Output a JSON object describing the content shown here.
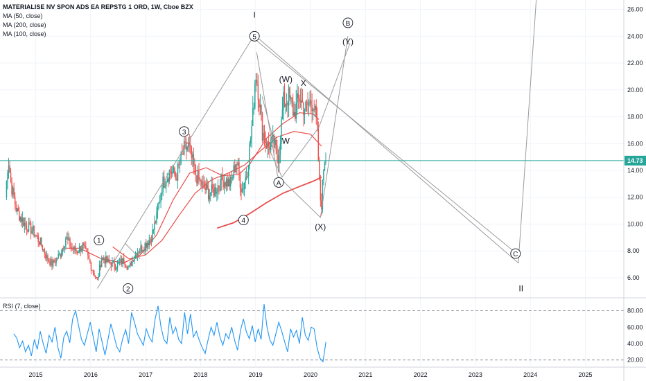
{
  "header": {
    "symbol_line": "MATERIALISE NV SPON ADS EA REPSTG 1 ORD, 1W, Cboe BZX",
    "studies": [
      "MA (50, close)",
      "MA (200, close)",
      "MA (100, close)"
    ]
  },
  "rsi_panel": {
    "label": "RSI (7, close)"
  },
  "current_price_label": "14.73",
  "colors": {
    "candle_up": "#26a69a",
    "candle_down": "#ef5350",
    "ma": "#e53935",
    "rsi": "#2196f3",
    "wave_lines": "#9a9a9a",
    "price_line": "#26a69a",
    "price_tag_bg": "#26a69a"
  },
  "chart_data": [
    {
      "type": "candlestick",
      "title": "MATERIALISE NV SPON ADS EA REPSTG 1 ORD, 1W, Cboe BZX",
      "x_ticks": [
        "2015",
        "2016",
        "2017",
        "2018",
        "2019",
        "2020",
        "2021",
        "2022",
        "2023",
        "2024",
        "2025"
      ],
      "y_ticks": [
        "6.00",
        "8.00",
        "10.00",
        "12.00",
        "14.00",
        "16.00",
        "18.00",
        "20.00",
        "22.00",
        "24.00",
        "26.00"
      ],
      "ylim": [
        4.5,
        26.7
      ],
      "last_price": 14.73,
      "price_path": [
        [
          2014.45,
          12
        ],
        [
          2014.5,
          15
        ],
        [
          2014.55,
          13
        ],
        [
          2014.65,
          11
        ],
        [
          2014.8,
          10
        ],
        [
          2014.95,
          9.5
        ],
        [
          2015.1,
          8.5
        ],
        [
          2015.2,
          7.5
        ],
        [
          2015.3,
          7
        ],
        [
          2015.45,
          7.8
        ],
        [
          2015.55,
          9
        ],
        [
          2015.65,
          8.2
        ],
        [
          2015.75,
          8
        ],
        [
          2015.85,
          8.4
        ],
        [
          2015.95,
          7.5
        ],
        [
          2016.05,
          6.4
        ],
        [
          2016.12,
          5.8
        ],
        [
          2016.2,
          7.5
        ],
        [
          2016.3,
          7.2
        ],
        [
          2016.45,
          6.9
        ],
        [
          2016.6,
          7.3
        ],
        [
          2016.7,
          6.7
        ],
        [
          2016.8,
          7.8
        ],
        [
          2016.95,
          8.3
        ],
        [
          2017.1,
          9
        ],
        [
          2017.2,
          10.5
        ],
        [
          2017.3,
          13
        ],
        [
          2017.45,
          14
        ],
        [
          2017.55,
          13.5
        ],
        [
          2017.7,
          15.5
        ],
        [
          2017.78,
          15.8
        ],
        [
          2017.9,
          13.8
        ],
        [
          2018.0,
          13
        ],
        [
          2018.15,
          12.3
        ],
        [
          2018.25,
          12.5
        ],
        [
          2018.4,
          13.3
        ],
        [
          2018.55,
          13
        ],
        [
          2018.65,
          14.8
        ],
        [
          2018.75,
          12.5
        ],
        [
          2018.85,
          14
        ],
        [
          2018.95,
          18
        ],
        [
          2019.0,
          21.5
        ],
        [
          2019.05,
          20
        ],
        [
          2019.12,
          17
        ],
        [
          2019.22,
          15.8
        ],
        [
          2019.32,
          16
        ],
        [
          2019.42,
          15
        ],
        [
          2019.5,
          19
        ],
        [
          2019.6,
          19.5
        ],
        [
          2019.7,
          18.2
        ],
        [
          2019.8,
          19.5
        ],
        [
          2019.9,
          18.5
        ],
        [
          2019.98,
          19
        ],
        [
          2020.05,
          19.2
        ],
        [
          2020.12,
          17
        ],
        [
          2020.17,
          12
        ],
        [
          2020.2,
          11.5
        ],
        [
          2020.25,
          15
        ],
        [
          2020.28,
          14.73
        ]
      ],
      "moving_averages": [
        {
          "name": "MA (50, close)",
          "points": [
            [
              2015.55,
              8.2
            ],
            [
              2015.8,
              8.2
            ],
            [
              2016.2,
              7.4
            ],
            [
              2016.6,
              7.1
            ],
            [
              2016.9,
              7.7
            ],
            [
              2017.2,
              9.2
            ],
            [
              2017.5,
              11.8
            ],
            [
              2017.8,
              13.8
            ],
            [
              2018.1,
              14.2
            ],
            [
              2018.4,
              13.6
            ],
            [
              2018.7,
              13.7
            ],
            [
              2018.9,
              14.5
            ],
            [
              2019.2,
              16.4
            ],
            [
              2019.5,
              17.5
            ],
            [
              2019.8,
              18.3
            ],
            [
              2020.05,
              18.2
            ],
            [
              2020.15,
              17.8
            ]
          ]
        },
        {
          "name": "MA (100, close)",
          "points": [
            [
              2016.4,
              8.3
            ],
            [
              2016.7,
              7.4
            ],
            [
              2017.0,
              7.7
            ],
            [
              2017.3,
              8.8
            ],
            [
              2017.6,
              10.6
            ],
            [
              2017.9,
              12.3
            ],
            [
              2018.2,
              13.3
            ],
            [
              2018.5,
              13.8
            ],
            [
              2018.8,
              14.4
            ],
            [
              2019.1,
              15.5
            ],
            [
              2019.4,
              16.5
            ],
            [
              2019.7,
              16.9
            ],
            [
              2020.0,
              16.7
            ],
            [
              2020.2,
              15.8
            ]
          ]
        },
        {
          "name": "MA (200, close)",
          "points": [
            [
              2018.3,
              9.7
            ],
            [
              2018.6,
              10.1
            ],
            [
              2018.9,
              10.8
            ],
            [
              2019.2,
              11.6
            ],
            [
              2019.5,
              12.3
            ],
            [
              2019.8,
              12.8
            ],
            [
              2020.05,
              13.2
            ],
            [
              2020.2,
              13.5
            ]
          ]
        }
      ],
      "wave_labels": [
        {
          "text": "1",
          "x": 2016.15,
          "y": 8.8,
          "circled": true
        },
        {
          "text": "2",
          "x": 2016.68,
          "y": 5.2,
          "circled": true
        },
        {
          "text": "3",
          "x": 2017.7,
          "y": 16.9,
          "circled": true
        },
        {
          "text": "4",
          "x": 2018.78,
          "y": 10.3,
          "circled": true
        },
        {
          "text": "5",
          "x": 2018.98,
          "y": 24.0,
          "circled": true
        },
        {
          "text": "I",
          "x": 2018.98,
          "y": 25.6,
          "circled": false
        },
        {
          "text": "(W)",
          "x": 2019.55,
          "y": 20.8,
          "circled": false
        },
        {
          "text": "X",
          "x": 2019.87,
          "y": 20.5,
          "circled": false
        },
        {
          "text": "W",
          "x": 2019.55,
          "y": 16.2,
          "circled": false
        },
        {
          "text": "A",
          "x": 2019.42,
          "y": 13.1,
          "circled": true
        },
        {
          "text": "(X)",
          "x": 2020.18,
          "y": 9.8,
          "circled": false
        },
        {
          "text": "B",
          "x": 2020.68,
          "y": 25.0,
          "circled": true
        },
        {
          "text": "(Y)",
          "x": 2020.68,
          "y": 23.6,
          "circled": false
        },
        {
          "text": "C",
          "x": 2023.73,
          "y": 7.8,
          "circled": true
        },
        {
          "text": "II",
          "x": 2023.83,
          "y": 5.2,
          "circled": false
        }
      ],
      "wave_paths": [
        [
          [
            2016.12,
            5.2
          ],
          [
            2018.98,
            24.1
          ],
          [
            2023.78,
            7.1
          ],
          [
            2024.12,
            27.5
          ]
        ],
        [
          [
            2016.62,
            8.6
          ],
          [
            2016.9,
            7.4
          ]
        ],
        [
          [
            2019.02,
            22.8
          ],
          [
            2019.4,
            13.6
          ],
          [
            2020.18,
            10.5
          ],
          [
            2020.68,
            24.0
          ]
        ],
        [
          [
            2019.12,
            19.5
          ],
          [
            2019.4,
            15.1
          ]
        ],
        [
          [
            2019.22,
            15.8
          ],
          [
            2019.48,
            13.5
          ],
          [
            2020.15,
            17.2
          ],
          [
            2020.72,
            23.5
          ]
        ],
        [
          [
            2018.98,
            23.8
          ],
          [
            2023.75,
            7.8
          ]
        ]
      ]
    },
    {
      "type": "line",
      "title": "RSI (7, close)",
      "y_ticks": [
        "20.00",
        "40.00",
        "60.00",
        "80.00"
      ],
      "ylim": [
        13,
        94
      ],
      "reference_levels": [
        20,
        80
      ],
      "series": [
        {
          "name": "RSI (7, close)",
          "x_start": 2014.6,
          "x_end": 2020.28,
          "values": [
            52,
            47,
            35,
            43,
            30,
            38,
            25,
            45,
            33,
            55,
            40,
            28,
            50,
            42,
            60,
            35,
            22,
            48,
            55,
            41,
            70,
            80,
            62,
            45,
            38,
            52,
            66,
            48,
            30,
            58,
            42,
            26,
            45,
            64,
            50,
            36,
            30,
            46,
            57,
            40,
            78,
            66,
            52,
            45,
            38,
            58,
            48,
            42,
            70,
            86,
            60,
            45,
            40,
            72,
            52,
            60,
            45,
            40,
            78,
            52,
            76,
            48,
            55,
            44,
            35,
            28,
            45,
            60,
            50,
            66,
            48,
            38,
            52,
            46,
            60,
            44,
            32,
            56,
            70,
            54,
            46,
            62,
            42,
            58,
            45,
            88,
            60,
            44,
            38,
            52,
            66,
            55,
            42,
            30,
            58,
            48,
            56,
            40,
            72,
            50,
            44,
            60,
            58,
            35,
            22,
            18,
            42
          ]
        }
      ]
    }
  ]
}
